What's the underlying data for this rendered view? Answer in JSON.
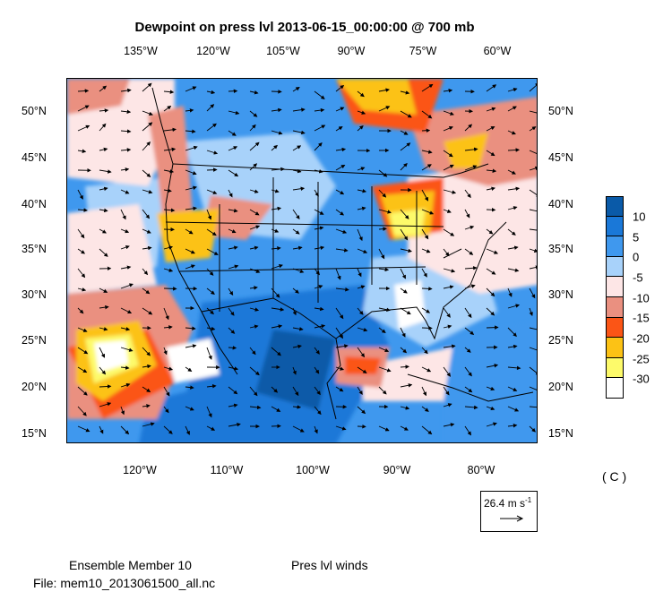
{
  "title": "Dewpoint on press lvl 2013-06-15_00:00:00 @ 700 mb",
  "top_lon_labels": [
    "135°W",
    "120°W",
    "105°W",
    "90°W",
    "75°W",
    "60°W"
  ],
  "bottom_lon_labels": [
    "120°W",
    "110°W",
    "100°W",
    "90°W",
    "80°W"
  ],
  "left_lat_labels": [
    "50°N",
    "45°N",
    "40°N",
    "35°N",
    "30°N",
    "25°N",
    "20°N",
    "15°N"
  ],
  "right_lat_labels": [
    "50°N",
    "45°N",
    "40°N",
    "35°N",
    "30°N",
    "25°N",
    "20°N",
    "15°N"
  ],
  "colorbar": {
    "labels": [
      "10",
      "5",
      "0",
      "-5",
      "-10",
      "-15",
      "-20",
      "-25",
      "-30"
    ],
    "colors": [
      "#0a5aa8",
      "#1a78d8",
      "#3f98ee",
      "#a8d2fa",
      "#fde6e6",
      "#ea9080",
      "#fb5516",
      "#fcc215",
      "#fdfa6a",
      "#ffffff"
    ]
  },
  "units": "( C )",
  "reference_vector": {
    "value": "26.4",
    "unit_text": "m s",
    "exponent": "-1"
  },
  "footer": {
    "member": "Ensemble Member 10",
    "file": "File: mem10_2013061500_all.nc",
    "winds": "Pres lvl winds"
  },
  "palette": {
    "deep": "#0a5aa8",
    "blue": "#1a78d8",
    "mid": "#3f98ee",
    "light": "#a8d2fa",
    "pink": "#fde6e6",
    "salmon": "#ea9080",
    "orange": "#fb5516",
    "gold": "#fcc215",
    "yellow": "#fdfa6a",
    "white": "#ffffff"
  }
}
